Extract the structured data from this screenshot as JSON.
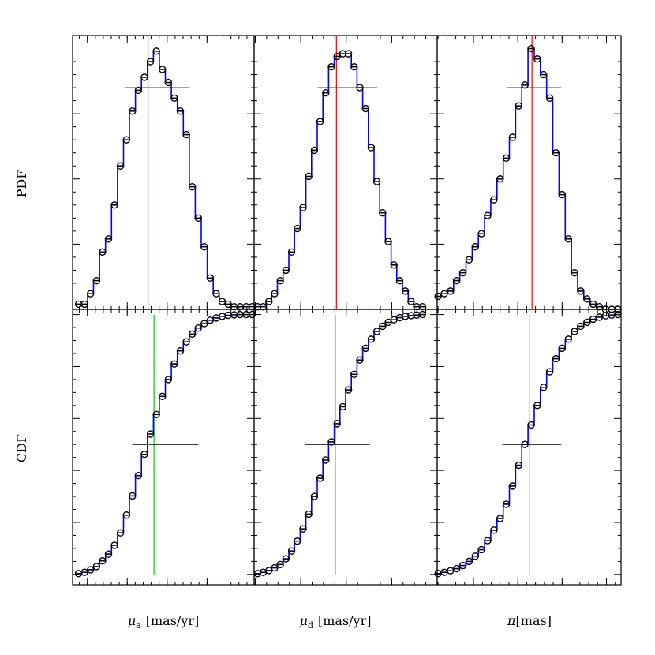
{
  "colors": {
    "frame": "#000000",
    "step_line": "#0000ff",
    "marker": "#000000",
    "pdf_peak_line": "#ff0000",
    "cdf_median_line": "#00cc00",
    "half_level_line": "#000000"
  },
  "labels": {
    "pdf_ylabel": "PDF",
    "cdf_ylabel": "CDF",
    "x_titles": [
      {
        "sym": "μ",
        "sub": "a",
        "unit": "[mas/yr]"
      },
      {
        "sym": "μ",
        "sub": "d",
        "unit": "[mas/yr]"
      },
      {
        "sym": "π",
        "sub": "",
        "unit": "[mas]"
      }
    ]
  },
  "chart_data": [
    {
      "type": "line",
      "panel": "PDF",
      "parameter": "mu_a",
      "xlim": [
        23.963,
        24.418
      ],
      "ylim": [
        0,
        1.05
      ],
      "x_ticks": [
        "24",
        "24.1",
        "24.2",
        "24.3"
      ],
      "x_tick_values": [
        24.0,
        24.1,
        24.2,
        24.3
      ],
      "minor_step": 0.02,
      "y_tick_values": [
        0.24,
        0.5,
        0.76
      ],
      "peak_x": 24.152,
      "half_line": {
        "y": 0.85,
        "x": [
          24.093,
          24.256
        ]
      },
      "x": [
        23.978,
        23.993,
        24.008,
        24.023,
        24.038,
        24.053,
        24.068,
        24.083,
        24.098,
        24.113,
        24.128,
        24.143,
        24.158,
        24.173,
        24.188,
        24.203,
        24.218,
        24.233,
        24.248,
        24.263,
        24.278,
        24.293,
        24.308,
        24.323,
        24.338,
        24.353,
        24.368,
        24.383,
        24.398,
        24.413
      ],
      "y": [
        0.02,
        0.02,
        0.06,
        0.11,
        0.22,
        0.27,
        0.4,
        0.55,
        0.65,
        0.76,
        0.84,
        0.89,
        0.95,
        0.99,
        0.92,
        0.87,
        0.81,
        0.76,
        0.67,
        0.47,
        0.35,
        0.24,
        0.12,
        0.06,
        0.03,
        0.02,
        0.01,
        0.01,
        0.01,
        0.01
      ]
    },
    {
      "type": "line",
      "panel": "PDF",
      "parameter": "mu_d",
      "xlim": [
        5.595,
        6.4
      ],
      "ylim": [
        0,
        1.05
      ],
      "x_ticks": [
        "5.6",
        "5.8",
        "6",
        "6.2"
      ],
      "x_tick_values": [
        5.6,
        5.8,
        6.0,
        6.2
      ],
      "minor_step": 0.05,
      "y_tick_values": [
        0.24,
        0.5,
        0.76
      ],
      "peak_x": 5.957,
      "half_line": {
        "y": 0.85,
        "x": [
          5.874,
          6.137
        ]
      },
      "x": [
        5.61,
        5.635,
        5.66,
        5.685,
        5.71,
        5.735,
        5.76,
        5.785,
        5.81,
        5.835,
        5.86,
        5.885,
        5.91,
        5.935,
        5.96,
        5.985,
        6.01,
        6.035,
        6.06,
        6.085,
        6.11,
        6.135,
        6.16,
        6.185,
        6.21,
        6.235,
        6.26,
        6.285,
        6.31,
        6.335
      ],
      "y": [
        0.01,
        0.01,
        0.03,
        0.06,
        0.11,
        0.15,
        0.22,
        0.31,
        0.39,
        0.51,
        0.61,
        0.72,
        0.83,
        0.93,
        0.97,
        0.98,
        0.98,
        0.93,
        0.85,
        0.77,
        0.62,
        0.49,
        0.37,
        0.26,
        0.17,
        0.11,
        0.07,
        0.03,
        0.01,
        0.01
      ]
    },
    {
      "type": "line",
      "panel": "PDF",
      "parameter": "pi",
      "xlim": [
        0.718,
        1.133
      ],
      "ylim": [
        0,
        1.05
      ],
      "x_ticks": [
        "0.8",
        "0.9",
        "1",
        "1.1"
      ],
      "x_tick_values": [
        0.8,
        0.9,
        1.0,
        1.1
      ],
      "minor_step": 0.02,
      "y_tick_values": [
        0.24,
        0.5,
        0.76
      ],
      "peak_x": 0.932,
      "half_line": {
        "y": 0.85,
        "x": [
          0.874,
          0.998
        ]
      },
      "x": [
        0.72,
        0.734,
        0.748,
        0.762,
        0.776,
        0.79,
        0.804,
        0.818,
        0.832,
        0.846,
        0.86,
        0.874,
        0.888,
        0.902,
        0.916,
        0.93,
        0.944,
        0.958,
        0.972,
        0.986,
        1.0,
        1.014,
        1.028,
        1.042,
        1.056,
        1.07,
        1.084,
        1.098,
        1.112,
        1.126
      ],
      "y": [
        0.05,
        0.06,
        0.07,
        0.11,
        0.14,
        0.19,
        0.24,
        0.29,
        0.36,
        0.42,
        0.5,
        0.58,
        0.66,
        0.78,
        0.86,
        1.0,
        0.96,
        0.9,
        0.81,
        0.6,
        0.44,
        0.27,
        0.14,
        0.07,
        0.04,
        0.02,
        0.01,
        0.0,
        0.0,
        0.0
      ]
    },
    {
      "type": "line",
      "panel": "CDF",
      "parameter": "mu_a",
      "xlim": [
        23.963,
        24.418
      ],
      "ylim": [
        -0.04,
        1.02
      ],
      "x_ticks": [
        "24",
        "24.1",
        "24.2",
        "24.3"
      ],
      "x_tick_values": [
        24.0,
        24.1,
        24.2,
        24.3
      ],
      "minor_step": 0.02,
      "y_ticks": [
        "0",
        "0.2",
        "0.4",
        "0.6",
        "0.8",
        "1"
      ],
      "y_tick_values": [
        0,
        0.2,
        0.4,
        0.6,
        0.8,
        1.0
      ],
      "median_x": 24.167,
      "half_line": {
        "y": 0.5,
        "x": [
          24.113,
          24.278
        ]
      },
      "x": [
        23.978,
        23.993,
        24.008,
        24.023,
        24.038,
        24.053,
        24.068,
        24.083,
        24.098,
        24.113,
        24.128,
        24.143,
        24.158,
        24.173,
        24.188,
        24.203,
        24.218,
        24.233,
        24.248,
        24.263,
        24.278,
        24.293,
        24.308,
        24.323,
        24.338,
        24.353,
        24.368,
        24.383,
        24.398,
        24.413
      ],
      "y": [
        0.003,
        0.008,
        0.018,
        0.03,
        0.052,
        0.078,
        0.112,
        0.16,
        0.228,
        0.302,
        0.38,
        0.462,
        0.54,
        0.615,
        0.685,
        0.75,
        0.81,
        0.86,
        0.895,
        0.925,
        0.948,
        0.965,
        0.978,
        0.987,
        0.993,
        0.997,
        0.999,
        1.0,
        1.0,
        1.0
      ]
    },
    {
      "type": "line",
      "panel": "CDF",
      "parameter": "mu_d",
      "xlim": [
        5.595,
        6.4
      ],
      "ylim": [
        -0.04,
        1.02
      ],
      "x_ticks": [
        "5.6",
        "5.8",
        "6",
        "6.2"
      ],
      "x_tick_values": [
        5.6,
        5.8,
        6.0,
        6.2
      ],
      "minor_step": 0.05,
      "y_ticks": [
        "0",
        "0.2",
        "0.4",
        "0.6",
        "0.8",
        "1"
      ],
      "y_tick_values": [
        0,
        0.2,
        0.4,
        0.6,
        0.8,
        1.0
      ],
      "median_x": 5.952,
      "half_line": {
        "y": 0.5,
        "x": [
          5.82,
          6.104
        ]
      },
      "x": [
        5.61,
        5.635,
        5.66,
        5.685,
        5.71,
        5.735,
        5.76,
        5.785,
        5.81,
        5.835,
        5.86,
        5.885,
        5.91,
        5.935,
        5.96,
        5.985,
        6.01,
        6.035,
        6.06,
        6.085,
        6.11,
        6.135,
        6.16,
        6.185,
        6.21,
        6.235,
        6.26,
        6.285,
        6.31,
        6.335
      ],
      "y": [
        0.003,
        0.008,
        0.015,
        0.025,
        0.038,
        0.06,
        0.09,
        0.128,
        0.175,
        0.232,
        0.3,
        0.37,
        0.44,
        0.51,
        0.58,
        0.645,
        0.71,
        0.77,
        0.825,
        0.87,
        0.905,
        0.935,
        0.955,
        0.97,
        0.98,
        0.988,
        0.993,
        0.996,
        0.998,
        1.0
      ]
    },
    {
      "type": "line",
      "panel": "CDF",
      "parameter": "pi",
      "xlim": [
        0.718,
        1.133
      ],
      "ylim": [
        -0.04,
        1.02
      ],
      "x_ticks": [
        "0.8",
        "0.9",
        "1",
        "1.1"
      ],
      "x_tick_values": [
        0.8,
        0.9,
        1.0,
        1.1
      ],
      "minor_step": 0.02,
      "y_ticks": [
        "0",
        "0.2",
        "0.4",
        "0.6",
        "0.8",
        "1"
      ],
      "y_tick_values": [
        0,
        0.2,
        0.4,
        0.6,
        0.8,
        1.0
      ],
      "median_x": 0.927,
      "half_line": {
        "y": 0.5,
        "x": [
          0.865,
          0.998
        ]
      },
      "x": [
        0.72,
        0.734,
        0.748,
        0.762,
        0.776,
        0.79,
        0.804,
        0.818,
        0.832,
        0.846,
        0.86,
        0.874,
        0.888,
        0.902,
        0.916,
        0.93,
        0.944,
        0.958,
        0.972,
        0.986,
        1.0,
        1.014,
        1.028,
        1.042,
        1.056,
        1.07,
        1.084,
        1.098,
        1.112,
        1.126
      ],
      "y": [
        0.003,
        0.008,
        0.014,
        0.022,
        0.034,
        0.05,
        0.07,
        0.095,
        0.13,
        0.17,
        0.215,
        0.27,
        0.34,
        0.42,
        0.5,
        0.575,
        0.65,
        0.72,
        0.78,
        0.83,
        0.87,
        0.905,
        0.935,
        0.955,
        0.97,
        0.982,
        0.99,
        0.995,
        0.998,
        1.0
      ]
    }
  ]
}
